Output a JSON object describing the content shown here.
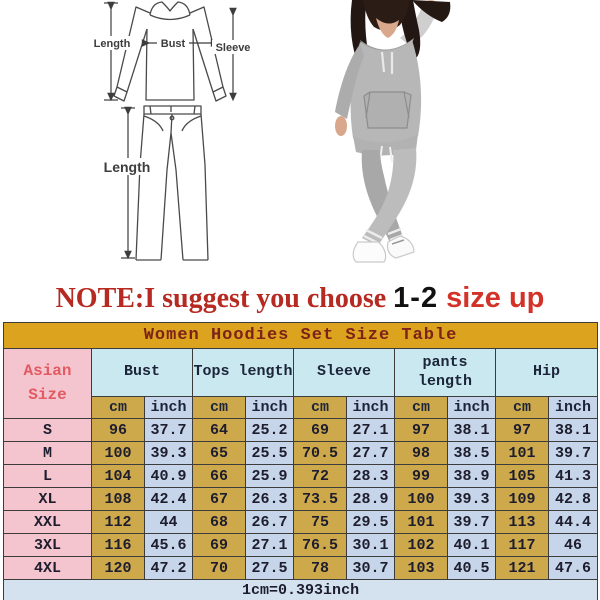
{
  "note": {
    "prefix": "NOTE:I suggest you choose ",
    "sizes": "1-2",
    "size_up": "size up"
  },
  "diagram_labels": {
    "top_length": "Length",
    "bust": "Bust",
    "sleeve": "Sleeve",
    "pants_length": "Length"
  },
  "chart_data": {
    "type": "table",
    "title": "Women Hoodies Set Size Table",
    "corner_header": "Asian Size",
    "column_groups": [
      "Bust",
      "Tops length",
      "Sleeve",
      "pants length",
      "Hip"
    ],
    "unit_headers": [
      "cm",
      "inch"
    ],
    "rows": [
      {
        "size": "S",
        "values": [
          "96",
          "37.7",
          "64",
          "25.2",
          "69",
          "27.1",
          "97",
          "38.1",
          "97",
          "38.1"
        ]
      },
      {
        "size": "M",
        "values": [
          "100",
          "39.3",
          "65",
          "25.5",
          "70.5",
          "27.7",
          "98",
          "38.5",
          "101",
          "39.7"
        ]
      },
      {
        "size": "L",
        "values": [
          "104",
          "40.9",
          "66",
          "25.9",
          "72",
          "28.3",
          "99",
          "38.9",
          "105",
          "41.3"
        ]
      },
      {
        "size": "XL",
        "values": [
          "108",
          "42.4",
          "67",
          "26.3",
          "73.5",
          "28.9",
          "100",
          "39.3",
          "109",
          "42.8"
        ]
      },
      {
        "size": "XXL",
        "values": [
          "112",
          "44",
          "68",
          "26.7",
          "75",
          "29.5",
          "101",
          "39.7",
          "113",
          "44.4"
        ]
      },
      {
        "size": "3XL",
        "values": [
          "116",
          "45.6",
          "69",
          "27.1",
          "76.5",
          "30.1",
          "102",
          "40.1",
          "117",
          "46"
        ]
      },
      {
        "size": "4XL",
        "values": [
          "120",
          "47.2",
          "70",
          "27.5",
          "78",
          "30.7",
          "103",
          "40.5",
          "121",
          "47.6"
        ]
      }
    ],
    "footer": "1cm=0.393inch"
  },
  "colors": {
    "title_gold": "#dca41e",
    "cell_gold": "#cda94b",
    "pink": "#f4c5ce",
    "cyan": "#c9e8ef",
    "cell_blue": "#c6d5e9",
    "footer_blue": "#d4e2ef",
    "title_text": "#7d2218",
    "asian_red": "#e25a62",
    "head_text": "#1b2438",
    "note_red": "#b62a22",
    "note_black": "#111111",
    "size_up_red": "#d33228"
  }
}
